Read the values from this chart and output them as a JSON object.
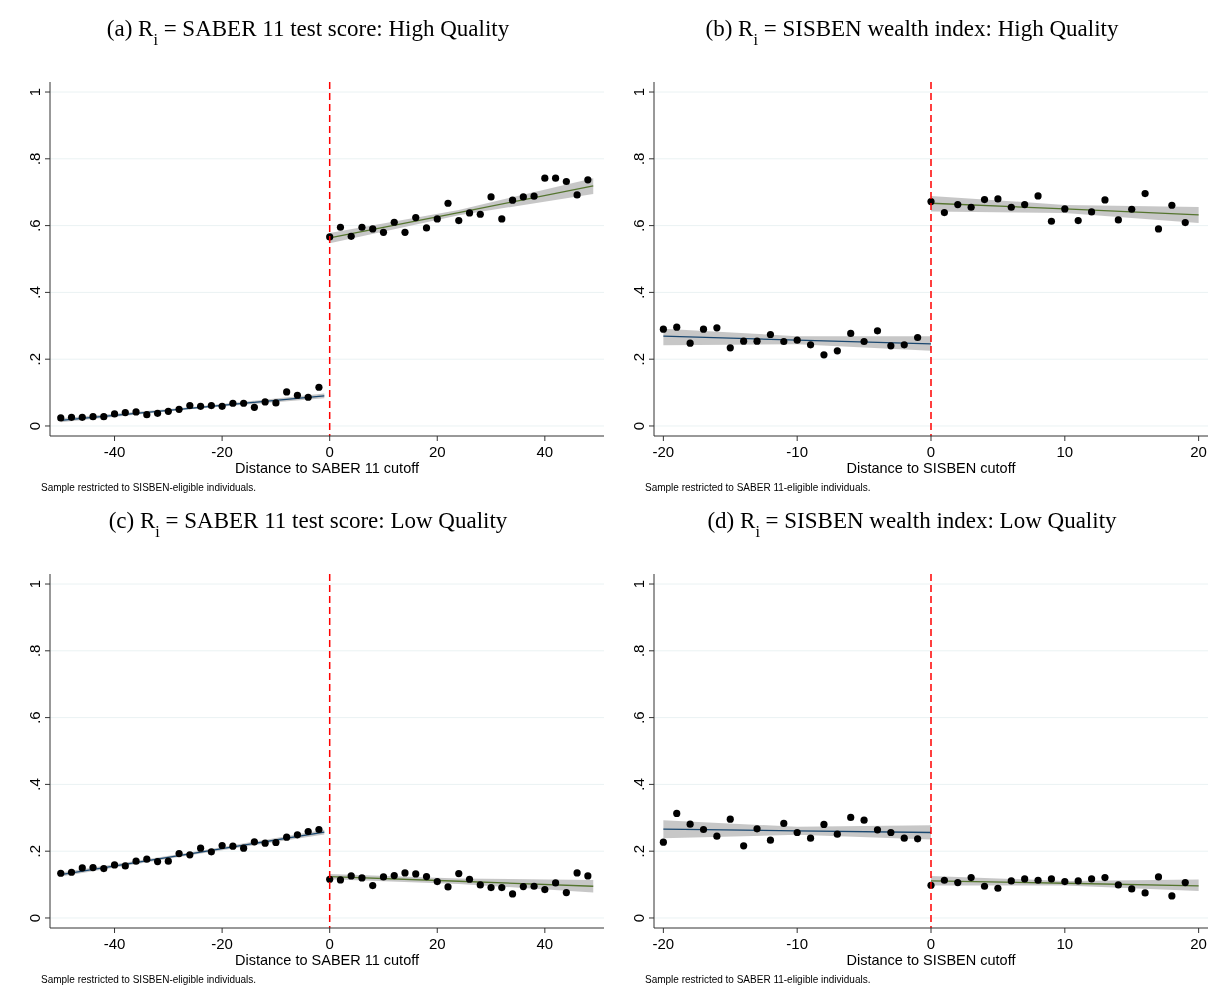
{
  "chart_data": [
    {
      "type": "scatter",
      "title": "(a) R$_{i}$ = SABER 11 test score: High Quality",
      "xlabel": "Distance to SABER 11 cutoff",
      "annotations": [
        "Sample restricted to SISBEN-eligible individuals."
      ],
      "xlim": [
        -52,
        51
      ],
      "xticks": [
        -40,
        -20,
        0,
        20,
        40
      ],
      "ylim": [
        -0.03,
        1.03
      ],
      "yticks": [
        {
          "value": 0,
          "label": "0"
        },
        {
          "value": 0.2,
          "label": ".2"
        },
        {
          "value": 0.4,
          "label": ".4"
        },
        {
          "value": 0.6,
          "label": ".6"
        },
        {
          "value": 0.8,
          "label": ".8"
        },
        {
          "value": 1,
          "label": "1"
        }
      ],
      "grid": "y",
      "marker": "circle",
      "ref_lines": [
        {
          "axis": "x",
          "value": 0,
          "color": "#ff0000",
          "line_style": "dashed"
        }
      ],
      "series": [
        {
          "color": "#000000",
          "x": [
            -50,
            -48,
            -46,
            -44,
            -42,
            -40,
            -38,
            -36,
            -34,
            -32,
            -30,
            -28,
            -26,
            -24,
            -22,
            -20,
            -18,
            -16,
            -14,
            -12,
            -10,
            -8,
            -6,
            -4,
            -2,
            0,
            2,
            4,
            6,
            8,
            10,
            12,
            14,
            16,
            18,
            20,
            22,
            24,
            26,
            28,
            30,
            32,
            34,
            36,
            38,
            40,
            42,
            44,
            46,
            48
          ],
          "values": [
            0.024,
            0.026,
            0.026,
            0.028,
            0.028,
            0.036,
            0.04,
            0.042,
            0.034,
            0.038,
            0.044,
            0.05,
            0.061,
            0.059,
            0.061,
            0.059,
            0.068,
            0.068,
            0.056,
            0.072,
            0.069,
            0.102,
            0.092,
            0.086,
            0.116,
            0.566,
            0.595,
            0.568,
            0.595,
            0.59,
            0.58,
            0.61,
            0.58,
            0.624,
            0.593,
            0.62,
            0.667,
            0.615,
            0.638,
            0.634,
            0.686,
            0.62,
            0.676,
            0.686,
            0.688,
            0.742,
            0.742,
            0.732,
            0.692,
            0.737
          ]
        },
        {
          "type": "line",
          "marker": "none",
          "color": "#1a476f",
          "x": [
            -50,
            -26,
            -1
          ],
          "values": [
            0.017,
            0.053,
            0.09
          ],
          "lower": [
            0.011,
            0.05,
            0.083
          ],
          "upper": [
            0.023,
            0.056,
            0.097
          ]
        },
        {
          "type": "line",
          "marker": "none",
          "color": "#55752f",
          "x": [
            0,
            24,
            49
          ],
          "values": [
            0.563,
            0.639,
            0.719
          ],
          "lower": [
            0.547,
            0.631,
            0.695
          ],
          "upper": [
            0.578,
            0.647,
            0.742
          ]
        }
      ]
    },
    {
      "type": "scatter",
      "title": "(b) R$_{i}$ = SISBEN wealth index: High Quality",
      "xlabel": "Distance to SISBEN cutoff",
      "annotations": [
        "Sample restricted to SABER 11-eligible individuals."
      ],
      "xlim": [
        -20.7,
        20.7
      ],
      "xticks": [
        -20,
        -10,
        0,
        10,
        20
      ],
      "ylim": [
        -0.03,
        1.03
      ],
      "yticks": [
        {
          "value": 0,
          "label": "0"
        },
        {
          "value": 0.2,
          "label": ".2"
        },
        {
          "value": 0.4,
          "label": ".4"
        },
        {
          "value": 0.6,
          "label": ".6"
        },
        {
          "value": 0.8,
          "label": ".8"
        },
        {
          "value": 1,
          "label": "1"
        }
      ],
      "grid": "y",
      "marker": "circle",
      "ref_lines": [
        {
          "axis": "x",
          "value": 0,
          "color": "#ff0000",
          "line_style": "dashed"
        }
      ],
      "series": [
        {
          "color": "#000000",
          "x": [
            -20,
            -19,
            -18,
            -17,
            -16,
            -15,
            -14,
            -13,
            -12,
            -11,
            -10,
            -9,
            -8,
            -7,
            -6,
            -5,
            -4,
            -3,
            -2,
            -1,
            0,
            1,
            2,
            3,
            4,
            5,
            6,
            7,
            8,
            9,
            10,
            11,
            12,
            13,
            14,
            15,
            16,
            17,
            18,
            19
          ],
          "values": [
            0.29,
            0.296,
            0.248,
            0.29,
            0.294,
            0.234,
            0.254,
            0.254,
            0.274,
            0.253,
            0.257,
            0.243,
            0.213,
            0.225,
            0.277,
            0.253,
            0.285,
            0.24,
            0.243,
            0.265,
            0.672,
            0.639,
            0.663,
            0.655,
            0.678,
            0.68,
            0.655,
            0.663,
            0.689,
            0.613,
            0.65,
            0.615,
            0.641,
            0.677,
            0.617,
            0.649,
            0.696,
            0.59,
            0.661,
            0.609
          ]
        },
        {
          "type": "line",
          "marker": "none",
          "color": "#1a476f",
          "x": [
            -20,
            -10,
            0
          ],
          "values": [
            0.269,
            0.257,
            0.246
          ],
          "lower": [
            0.242,
            0.245,
            0.225
          ],
          "upper": [
            0.291,
            0.269,
            0.269
          ]
        },
        {
          "type": "line",
          "marker": "none",
          "color": "#55752f",
          "x": [
            0,
            10,
            20
          ],
          "values": [
            0.667,
            0.65,
            0.632
          ],
          "lower": [
            0.642,
            0.638,
            0.608
          ],
          "upper": [
            0.689,
            0.662,
            0.656
          ]
        }
      ]
    },
    {
      "type": "scatter",
      "title": "(c) R$_{i}$ = SABER 11 test score: Low Quality",
      "xlabel": "Distance to SABER 11 cutoff",
      "annotations": [
        "Sample restricted to SISBEN-eligible individuals."
      ],
      "xlim": [
        -52,
        51
      ],
      "xticks": [
        -40,
        -20,
        0,
        20,
        40
      ],
      "ylim": [
        -0.03,
        1.03
      ],
      "yticks": [
        {
          "value": 0,
          "label": "0"
        },
        {
          "value": 0.2,
          "label": ".2"
        },
        {
          "value": 0.4,
          "label": ".4"
        },
        {
          "value": 0.6,
          "label": ".6"
        },
        {
          "value": 0.8,
          "label": ".8"
        },
        {
          "value": 1,
          "label": "1"
        }
      ],
      "grid": "y",
      "marker": "circle",
      "ref_lines": [
        {
          "axis": "x",
          "value": 0,
          "color": "#ff0000",
          "line_style": "dashed"
        }
      ],
      "series": [
        {
          "color": "#000000",
          "x": [
            -50,
            -48,
            -46,
            -44,
            -42,
            -40,
            -38,
            -36,
            -34,
            -32,
            -30,
            -28,
            -26,
            -24,
            -22,
            -20,
            -18,
            -16,
            -14,
            -12,
            -10,
            -8,
            -6,
            -4,
            -2,
            0,
            2,
            4,
            6,
            8,
            10,
            12,
            14,
            16,
            18,
            20,
            22,
            24,
            26,
            28,
            30,
            32,
            34,
            36,
            38,
            40,
            42,
            44,
            46,
            48
          ],
          "values": [
            0.134,
            0.137,
            0.15,
            0.151,
            0.148,
            0.159,
            0.156,
            0.17,
            0.176,
            0.169,
            0.17,
            0.193,
            0.189,
            0.209,
            0.198,
            0.217,
            0.215,
            0.209,
            0.228,
            0.224,
            0.226,
            0.242,
            0.249,
            0.259,
            0.265,
            0.116,
            0.114,
            0.126,
            0.12,
            0.097,
            0.123,
            0.127,
            0.135,
            0.132,
            0.124,
            0.109,
            0.093,
            0.133,
            0.116,
            0.099,
            0.091,
            0.091,
            0.072,
            0.094,
            0.095,
            0.085,
            0.105,
            0.076,
            0.135,
            0.126
          ]
        },
        {
          "type": "line",
          "marker": "none",
          "color": "#1a476f",
          "x": [
            -50,
            -26,
            -1
          ],
          "values": [
            0.13,
            0.192,
            0.257
          ],
          "lower": [
            0.124,
            0.188,
            0.25
          ],
          "upper": [
            0.136,
            0.196,
            0.264
          ]
        },
        {
          "type": "line",
          "marker": "none",
          "color": "#55752f",
          "x": [
            0,
            24,
            49
          ],
          "values": [
            0.124,
            0.11,
            0.095
          ],
          "lower": [
            0.116,
            0.102,
            0.076
          ],
          "upper": [
            0.132,
            0.118,
            0.114
          ]
        }
      ]
    },
    {
      "type": "scatter",
      "title": "(d) R$_{i}$ = SISBEN wealth index: Low Quality",
      "xlabel": "Distance to SISBEN cutoff",
      "annotations": [
        "Sample restricted to SABER 11-eligible individuals."
      ],
      "xlim": [
        -20.7,
        20.7
      ],
      "xticks": [
        -20,
        -10,
        0,
        10,
        20
      ],
      "ylim": [
        -0.03,
        1.03
      ],
      "yticks": [
        {
          "value": 0,
          "label": "0"
        },
        {
          "value": 0.2,
          "label": ".2"
        },
        {
          "value": 0.4,
          "label": ".4"
        },
        {
          "value": 0.6,
          "label": ".6"
        },
        {
          "value": 0.8,
          "label": ".8"
        },
        {
          "value": 1,
          "label": "1"
        }
      ],
      "grid": "y",
      "marker": "circle",
      "ref_lines": [
        {
          "axis": "x",
          "value": 0,
          "color": "#ff0000",
          "line_style": "dashed"
        }
      ],
      "series": [
        {
          "color": "#000000",
          "x": [
            -20,
            -19,
            -18,
            -17,
            -16,
            -15,
            -14,
            -13,
            -12,
            -11,
            -10,
            -9,
            -8,
            -7,
            -6,
            -5,
            -4,
            -3,
            -2,
            -1,
            0,
            1,
            2,
            3,
            4,
            5,
            6,
            7,
            8,
            9,
            10,
            11,
            12,
            13,
            14,
            15,
            16,
            17,
            18,
            19
          ],
          "values": [
            0.227,
            0.313,
            0.281,
            0.265,
            0.245,
            0.296,
            0.216,
            0.267,
            0.233,
            0.283,
            0.256,
            0.239,
            0.28,
            0.251,
            0.301,
            0.293,
            0.264,
            0.256,
            0.239,
            0.237,
            0.098,
            0.113,
            0.106,
            0.121,
            0.095,
            0.089,
            0.111,
            0.117,
            0.113,
            0.117,
            0.109,
            0.111,
            0.117,
            0.121,
            0.099,
            0.087,
            0.075,
            0.123,
            0.066,
            0.106
          ]
        },
        {
          "type": "line",
          "marker": "none",
          "color": "#1a476f",
          "x": [
            -20,
            -10,
            0
          ],
          "values": [
            0.266,
            0.261,
            0.256
          ],
          "lower": [
            0.239,
            0.249,
            0.235
          ],
          "upper": [
            0.293,
            0.273,
            0.278
          ]
        },
        {
          "type": "line",
          "marker": "none",
          "color": "#55752f",
          "x": [
            0,
            10,
            20
          ],
          "values": [
            0.111,
            0.104,
            0.096
          ],
          "lower": [
            0.097,
            0.097,
            0.081
          ],
          "upper": [
            0.126,
            0.111,
            0.115
          ]
        }
      ]
    }
  ]
}
